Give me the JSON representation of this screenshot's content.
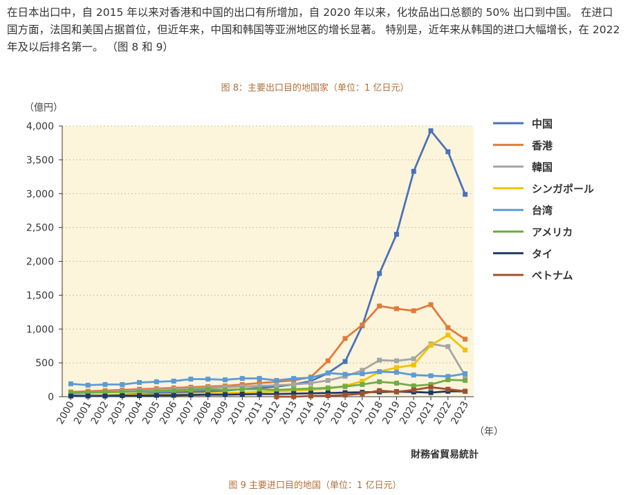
{
  "article": {
    "paragraph": "在日本出口中，自 2015 年以来对香港和中国的出口有所增加，自 2020 年以来，化妆品出口总额的 50% 出口到中国。 在进口国方面，法国和美国占据首位，但近年来，中国和韩国等亚洲地区的增长显著。 特别是，近年来从韩国的进口大幅增长，在 2022 年及以后排名第一。 （图 8 和 9）"
  },
  "figure": {
    "caption_top": "图 8：主要出口目的地国家（单位：1 亿日元）",
    "caption_bottom": "图 9 主要进口目的地国（单位：1 亿日元）"
  },
  "chart_data": {
    "type": "line",
    "ylabel": "（億円）",
    "xlabel": "（年）",
    "source": "財務省貿易統計",
    "ylim": [
      0,
      4000
    ],
    "yticks": [
      0,
      500,
      1000,
      1500,
      2000,
      2500,
      3000,
      3500,
      4000
    ],
    "ytick_labels": [
      "0",
      "500",
      "1,000",
      "1,500",
      "2,000",
      "2,500",
      "3,000",
      "3,500",
      "4,000"
    ],
    "x": [
      "2000",
      "2001",
      "2002",
      "2003",
      "2004",
      "2005",
      "2006",
      "2007",
      "2008",
      "2009",
      "2010",
      "2011",
      "2012",
      "2013",
      "2014",
      "2015",
      "2016",
      "2017",
      "2018",
      "2019",
      "2020",
      "2021",
      "2022",
      "2023"
    ],
    "grid": true,
    "legend_position": "right",
    "plot_background": "#fdf4dc",
    "series": [
      {
        "name": "中国",
        "color": "#4a72b8",
        "values": [
          20,
          20,
          25,
          30,
          40,
          50,
          60,
          70,
          80,
          90,
          110,
          130,
          150,
          180,
          230,
          350,
          520,
          1050,
          1820,
          2400,
          3330,
          3930,
          3620,
          2990
        ]
      },
      {
        "name": "香港",
        "color": "#e07b39",
        "values": [
          70,
          80,
          90,
          100,
          110,
          120,
          130,
          140,
          150,
          160,
          180,
          200,
          220,
          240,
          290,
          530,
          860,
          1060,
          1340,
          1300,
          1270,
          1360,
          1020,
          850
        ]
      },
      {
        "name": "韓国",
        "color": "#a5a5a5",
        "values": [
          50,
          60,
          70,
          80,
          90,
          100,
          110,
          120,
          130,
          140,
          150,
          160,
          170,
          180,
          200,
          240,
          300,
          390,
          540,
          530,
          560,
          780,
          740,
          310
        ]
      },
      {
        "name": "シンガポール",
        "color": "#f2c200",
        "values": [
          10,
          15,
          20,
          25,
          30,
          35,
          40,
          45,
          50,
          55,
          60,
          70,
          80,
          90,
          100,
          120,
          160,
          230,
          370,
          430,
          470,
          760,
          910,
          690
        ]
      },
      {
        "name": "台湾",
        "color": "#5b9bd5",
        "values": [
          190,
          170,
          180,
          180,
          210,
          220,
          230,
          260,
          260,
          250,
          270,
          270,
          240,
          270,
          280,
          350,
          330,
          340,
          370,
          360,
          320,
          310,
          300,
          340
        ]
      },
      {
        "name": "アメリカ",
        "color": "#70ad47",
        "values": [
          60,
          60,
          65,
          70,
          75,
          80,
          90,
          100,
          110,
          100,
          110,
          110,
          100,
          110,
          120,
          130,
          150,
          180,
          220,
          200,
          160,
          180,
          250,
          240
        ]
      },
      {
        "name": "タイ",
        "color": "#1f3864",
        "values": [
          10,
          10,
          10,
          15,
          15,
          20,
          20,
          25,
          30,
          30,
          35,
          40,
          40,
          45,
          50,
          55,
          60,
          65,
          70,
          75,
          70,
          60,
          80,
          80
        ]
      },
      {
        "name": "ベトナム",
        "color": "#a0522d",
        "values": [
          null,
          null,
          null,
          null,
          null,
          null,
          null,
          null,
          null,
          null,
          null,
          null,
          0,
          0,
          10,
          15,
          25,
          45,
          90,
          70,
          100,
          140,
          110,
          80
        ]
      }
    ]
  }
}
